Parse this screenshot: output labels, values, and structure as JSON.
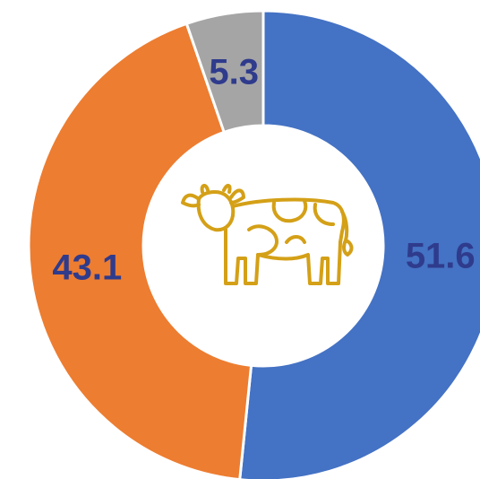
{
  "chart_data": {
    "type": "pie",
    "values": [
      51.6,
      43.1,
      5.3
    ],
    "colors": [
      "#4472c4",
      "#ed7d31",
      "#a5a5a5"
    ]
  }
}
